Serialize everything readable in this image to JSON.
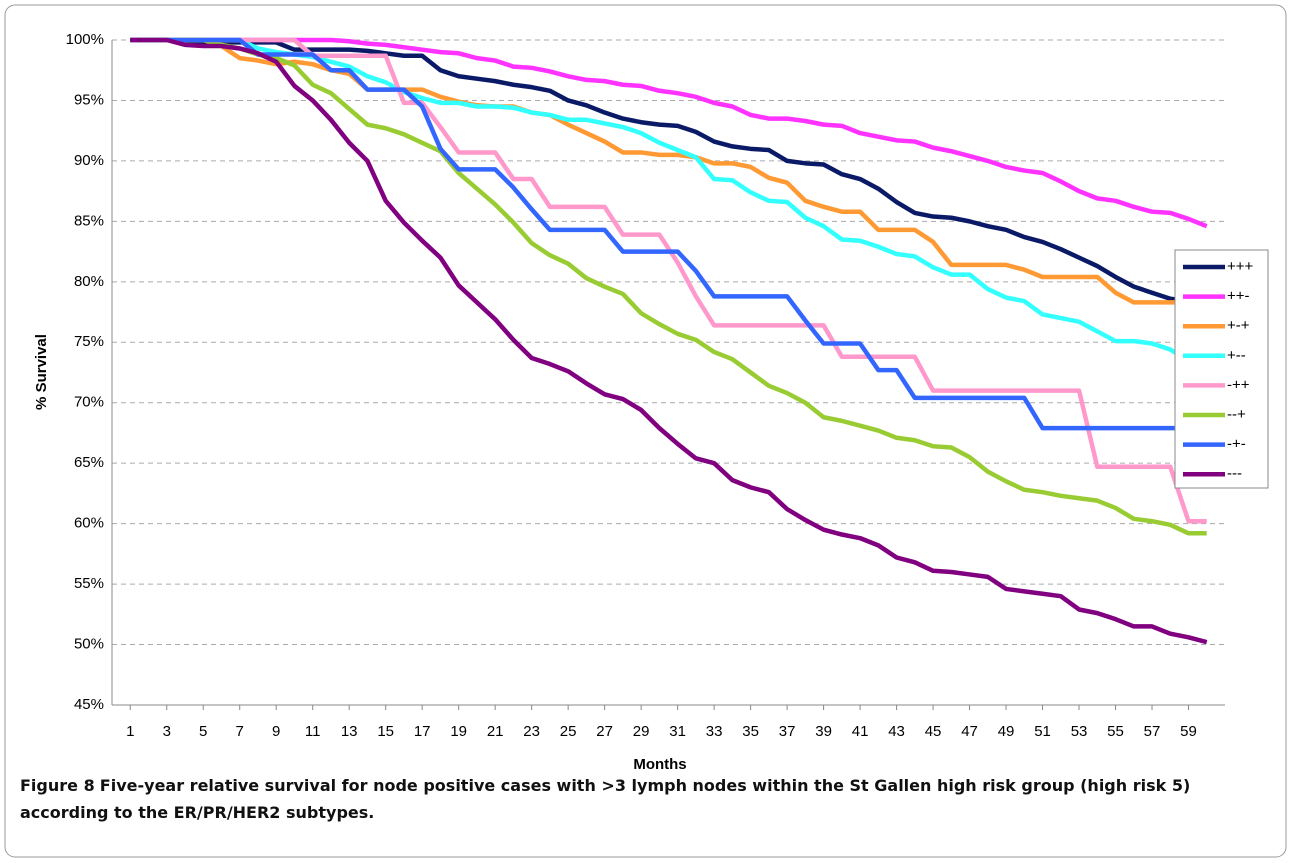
{
  "chart_data": {
    "type": "line",
    "y_label": "% Survival",
    "x_label": "Months",
    "caption": {
      "label": "Figure 8",
      "text": "Five-year relative survival for node positive cases with >3 lymph nodes within the St Gallen high risk group (high risk 5) according to the ER/PR/HER2 subtypes."
    },
    "x": [
      1,
      2,
      3,
      4,
      5,
      6,
      7,
      8,
      9,
      10,
      11,
      12,
      13,
      14,
      15,
      16,
      17,
      18,
      19,
      20,
      21,
      22,
      23,
      24,
      25,
      26,
      27,
      28,
      29,
      30,
      31,
      32,
      33,
      34,
      35,
      36,
      37,
      38,
      39,
      40,
      41,
      42,
      43,
      44,
      45,
      46,
      47,
      48,
      49,
      50,
      51,
      52,
      53,
      54,
      55,
      56,
      57,
      58,
      59,
      60
    ],
    "xlim": [
      0,
      61
    ],
    "xticks": [
      1,
      3,
      5,
      7,
      9,
      11,
      13,
      15,
      17,
      19,
      21,
      23,
      25,
      27,
      29,
      31,
      33,
      35,
      37,
      39,
      41,
      43,
      45,
      47,
      49,
      51,
      53,
      55,
      57,
      59
    ],
    "ylim": [
      45,
      100
    ],
    "yticks": [
      {
        "value": 45,
        "label": "45%"
      },
      {
        "value": 50,
        "label": "50%"
      },
      {
        "value": 55,
        "label": "55%"
      },
      {
        "value": 60,
        "label": "60%"
      },
      {
        "value": 65,
        "label": "65%"
      },
      {
        "value": 70,
        "label": "70%"
      },
      {
        "value": 75,
        "label": "75%"
      },
      {
        "value": 80,
        "label": "80%"
      },
      {
        "value": 85,
        "label": "85%"
      },
      {
        "value": 90,
        "label": "90%"
      },
      {
        "value": 95,
        "label": "95%"
      },
      {
        "value": 100,
        "label": "100%"
      }
    ],
    "grid": true,
    "legend": "right",
    "series": [
      {
        "name": "+++",
        "color": "#0a1a66",
        "values": [
          100,
          100,
          100,
          99.9,
          99.8,
          99.8,
          99.8,
          99.8,
          99.8,
          99.2,
          99.2,
          99.2,
          99.2,
          99.1,
          98.9,
          98.7,
          98.7,
          97.5,
          97,
          96.8,
          96.6,
          96.3,
          96.1,
          95.8,
          95,
          94.6,
          94,
          93.5,
          93.2,
          93,
          92.9,
          92.4,
          91.6,
          91.2,
          91,
          90.9,
          90,
          89.8,
          89.7,
          88.9,
          88.5,
          87.7,
          86.6,
          85.7,
          85.4,
          85.3,
          85,
          84.6,
          84.3,
          83.7,
          83.3,
          82.7,
          82,
          81.3,
          80.4,
          79.6,
          79.1,
          78.6,
          78.4,
          78.2
        ]
      },
      {
        "name": "++-",
        "color": "#ff33ff",
        "values": [
          100,
          100,
          100,
          100,
          100,
          100,
          100,
          100,
          100,
          100,
          100,
          100,
          99.9,
          99.7,
          99.6,
          99.4,
          99.2,
          99,
          98.9,
          98.5,
          98.3,
          97.8,
          97.7,
          97.4,
          97,
          96.7,
          96.6,
          96.3,
          96.2,
          95.8,
          95.6,
          95.3,
          94.8,
          94.5,
          93.8,
          93.5,
          93.5,
          93.3,
          93,
          92.9,
          92.3,
          92,
          91.7,
          91.6,
          91.1,
          90.8,
          90.4,
          90,
          89.5,
          89.2,
          89,
          88.3,
          87.5,
          86.9,
          86.7,
          86.2,
          85.8,
          85.7,
          85.2,
          84.6
        ]
      },
      {
        "name": "+-+",
        "color": "#ff9933",
        "values": [
          100,
          100,
          100,
          100,
          100,
          99.5,
          98.5,
          98.3,
          98,
          98.2,
          98,
          97.5,
          97.2,
          95.9,
          95.9,
          95.9,
          95.9,
          95.3,
          94.9,
          94.6,
          94.5,
          94.5,
          94,
          93.8,
          93,
          92.3,
          91.6,
          90.7,
          90.7,
          90.5,
          90.5,
          90.3,
          89.8,
          89.8,
          89.5,
          88.6,
          88.2,
          86.7,
          86.2,
          85.8,
          85.8,
          84.3,
          84.3,
          84.3,
          83.3,
          81.4,
          81.4,
          81.4,
          81.4,
          81,
          80.4,
          80.4,
          80.4,
          80.4,
          79.1,
          78.3,
          78.3,
          78.3,
          78.3,
          78.3
        ]
      },
      {
        "name": "+--",
        "color": "#33ffff",
        "values": [
          100,
          100,
          100,
          100,
          100,
          100,
          100,
          99.3,
          99,
          98.8,
          98.6,
          98.2,
          97.8,
          97,
          96.5,
          95.7,
          95.2,
          94.8,
          94.8,
          94.5,
          94.5,
          94.4,
          94,
          93.8,
          93.4,
          93.4,
          93.1,
          92.8,
          92.3,
          91.5,
          90.9,
          90.3,
          88.5,
          88.4,
          87.4,
          86.7,
          86.6,
          85.3,
          84.6,
          83.5,
          83.4,
          82.9,
          82.3,
          82.1,
          81.2,
          80.6,
          80.6,
          79.4,
          78.7,
          78.4,
          77.3,
          77,
          76.7,
          75.9,
          75.1,
          75.1,
          74.9,
          74.4,
          73.5,
          73.1
        ]
      },
      {
        "name": "-++",
        "color": "#ff99cc",
        "values": [
          100,
          100,
          100,
          100,
          100,
          100,
          100,
          100,
          100,
          100,
          98.7,
          98.7,
          98.7,
          98.7,
          98.7,
          94.8,
          94.8,
          92.8,
          90.7,
          90.7,
          90.7,
          88.5,
          88.5,
          86.2,
          86.2,
          86.2,
          86.2,
          83.9,
          83.9,
          83.9,
          81.6,
          78.8,
          76.4,
          76.4,
          76.4,
          76.4,
          76.4,
          76.4,
          76.4,
          73.8,
          73.8,
          73.8,
          73.8,
          73.8,
          71,
          71,
          71,
          71,
          71,
          71,
          71,
          71,
          71,
          64.7,
          64.7,
          64.7,
          64.7,
          64.7,
          60.2,
          60.2
        ]
      },
      {
        "name": "--+",
        "color": "#99cc33",
        "values": [
          100,
          100,
          100,
          100,
          100,
          99.6,
          99.3,
          98.8,
          98.5,
          97.9,
          96.3,
          95.6,
          94.3,
          93,
          92.7,
          92.2,
          91.5,
          90.8,
          89,
          87.7,
          86.4,
          84.9,
          83.2,
          82.2,
          81.5,
          80.3,
          79.6,
          79,
          77.4,
          76.5,
          75.7,
          75.2,
          74.2,
          73.6,
          72.5,
          71.4,
          70.8,
          70,
          68.8,
          68.5,
          68.1,
          67.7,
          67.1,
          66.9,
          66.4,
          66.3,
          65.5,
          64.3,
          63.5,
          62.8,
          62.6,
          62.3,
          62.1,
          61.9,
          61.3,
          60.4,
          60.2,
          59.9,
          59.2,
          59.2
        ]
      },
      {
        "name": "-+-",
        "color": "#3366ff",
        "values": [
          100,
          100,
          100,
          100,
          100,
          100,
          100,
          98.8,
          98.8,
          98.8,
          98.8,
          97.5,
          97.5,
          95.9,
          95.9,
          95.9,
          94.5,
          91,
          89.3,
          89.3,
          89.3,
          87.8,
          86,
          84.3,
          84.3,
          84.3,
          84.3,
          82.5,
          82.5,
          82.5,
          82.5,
          80.9,
          78.8,
          78.8,
          78.8,
          78.8,
          78.8,
          76.8,
          74.9,
          74.9,
          74.9,
          72.7,
          72.7,
          70.4,
          70.4,
          70.4,
          70.4,
          70.4,
          70.4,
          70.4,
          67.9,
          67.9,
          67.9,
          67.9,
          67.9,
          67.9,
          67.9,
          67.9,
          67.9,
          67.9
        ]
      },
      {
        "name": "---",
        "color": "#800080",
        "values": [
          100,
          100,
          100,
          99.6,
          99.5,
          99.5,
          99.3,
          98.9,
          98.2,
          96.2,
          95,
          93.4,
          91.5,
          90,
          86.7,
          84.9,
          83.4,
          82,
          79.7,
          78.3,
          76.9,
          75.2,
          73.7,
          73.2,
          72.6,
          71.6,
          70.7,
          70.3,
          69.4,
          67.9,
          66.6,
          65.4,
          65,
          63.6,
          63,
          62.6,
          61.2,
          60.3,
          59.5,
          59.1,
          58.8,
          58.2,
          57.2,
          56.8,
          56.1,
          56,
          55.8,
          55.6,
          54.6,
          54.4,
          54.2,
          54,
          52.9,
          52.6,
          52.1,
          51.5,
          51.5,
          50.9,
          50.6,
          50.2
        ]
      }
    ]
  }
}
